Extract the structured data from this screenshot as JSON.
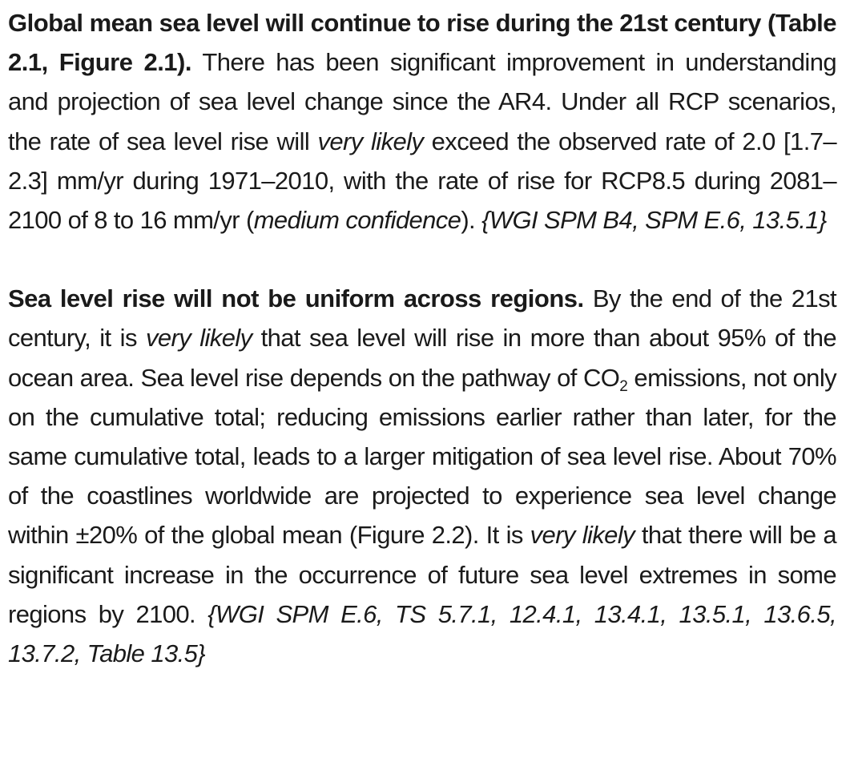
{
  "paragraphs": [
    {
      "lead": "Global mean sea level will continue to rise during the 21st century (Table 2.1, Figure 2.1).",
      "s1": " There has been significant improvement in understanding and projection of sea level change since the AR4. Under all RCP scenarios, the rate of sea level rise will ",
      "em1": "very likely",
      "s2": " exceed the observed rate of 2.0 [1.7–2.3] mm/yr during 1971–2010, with the rate of rise for RCP8.5 during 2081–2100 of 8 to 16 mm/yr (",
      "em2": "medium confidence",
      "s3": "). ",
      "ref": "{WGI SPM B4, SPM E.6, 13.5.1}"
    },
    {
      "lead": "Sea level rise will not be uniform across regions.",
      "s1": " By the end of the 21st century, it is ",
      "em1": "very likely",
      "s2": " that sea level will rise in more than about 95% of the ocean area. Sea level rise depends on the pathway of CO",
      "sub": "2",
      "s3": " emissions, not only on the cumulative total; reducing emissions earlier rather than later, for the same cumulative total, leads to a larger mitigation of sea level rise. About 70% of the coastlines worldwide are projected to experience sea level change within ±20% of the global mean (Figure 2.2). It is ",
      "em2": "very likely",
      "s4": " that there will be a significant increase in the occurrence of future sea level extremes in some regions by 2100. ",
      "ref": "{WGI SPM E.6, TS 5.7.1, 12.4.1, 13.4.1, 13.5.1, 13.6.5, 13.7.2, Table 13.5}"
    }
  ]
}
